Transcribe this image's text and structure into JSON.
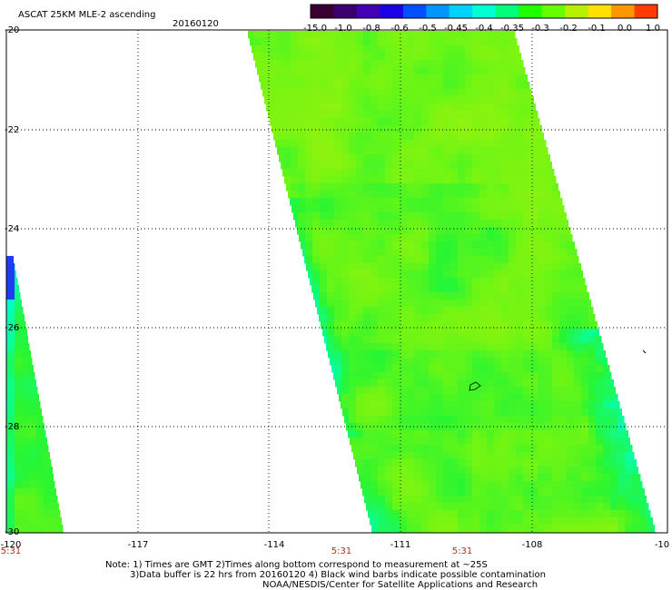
{
  "title": "ASCAT 25KM MLE-2 ascending",
  "date": "20160120",
  "colorbar": {
    "labels": [
      "-15.0",
      "-1.0",
      "-0.8",
      "-0.6",
      "-0.5",
      "-0.45",
      "-0.4",
      "-0.35",
      "-0.3",
      "-0.2",
      "-0.1",
      "0.0",
      "1.0"
    ],
    "colors": [
      "#3a0030",
      "#3a0070",
      "#4400b4",
      "#1c00e6",
      "#0050ff",
      "#0096ff",
      "#00d2ff",
      "#00ffd2",
      "#00ff7a",
      "#1eff00",
      "#64ff00",
      "#b4f000",
      "#ffe000",
      "#ff9600",
      "#ff3c00"
    ]
  },
  "lat_labels": [
    "-20",
    "-22",
    "-24",
    "-26",
    "-28",
    "-30"
  ],
  "lon_labels": [
    "-120",
    "-117",
    "-114",
    "-111",
    "-108",
    "-10"
  ],
  "time_labels": [
    "5:31",
    "5:31",
    "5:31"
  ],
  "notes": {
    "line1": "Note: 1) Times are GMT 2)Times along bottom correspond to measurement at ~25S",
    "line2": "3)Data buffer is 22 hrs from 20160120 4) Black wind barbs indicate possible contamination",
    "line3": "NOAA/NESDIS/Center for Satellite Applications and Research"
  }
}
